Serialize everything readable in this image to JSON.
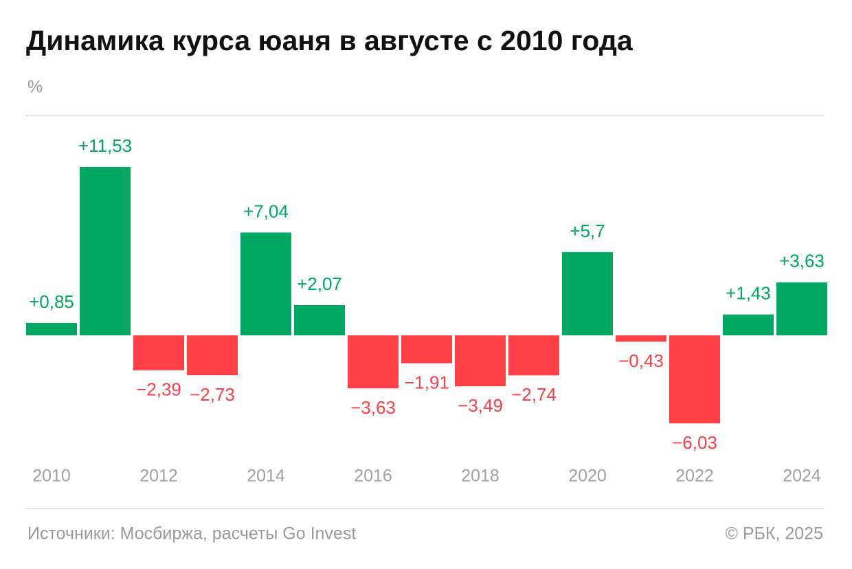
{
  "chart_data": {
    "type": "bar",
    "title": "Динамика курса юаня в августе с 2010 года",
    "unit": "%",
    "categories": [
      "2010",
      null,
      "2012",
      null,
      "2014",
      null,
      "2016",
      null,
      "2018",
      null,
      "2020",
      null,
      "2022",
      null,
      "2024"
    ],
    "values": [
      0.85,
      11.53,
      -2.39,
      -2.73,
      7.04,
      2.07,
      -3.63,
      -1.91,
      -3.49,
      -2.74,
      5.7,
      -0.43,
      -6.03,
      1.43,
      3.63
    ],
    "value_labels": [
      "+0,85",
      "+11,53",
      "−2,39",
      "−2,73",
      "+7,04",
      "+2,07",
      "−3,63",
      "−1,91",
      "−3,49",
      "−2,74",
      "+5,7",
      "−0,43",
      "−6,03",
      "+1,43",
      "+3,63"
    ],
    "colors": {
      "positive": "#00a864",
      "negative": "#ff4046"
    },
    "source": "Источники: Мосбиржа, расчеты Go Invest",
    "copyright": "© РБК, 2025"
  }
}
